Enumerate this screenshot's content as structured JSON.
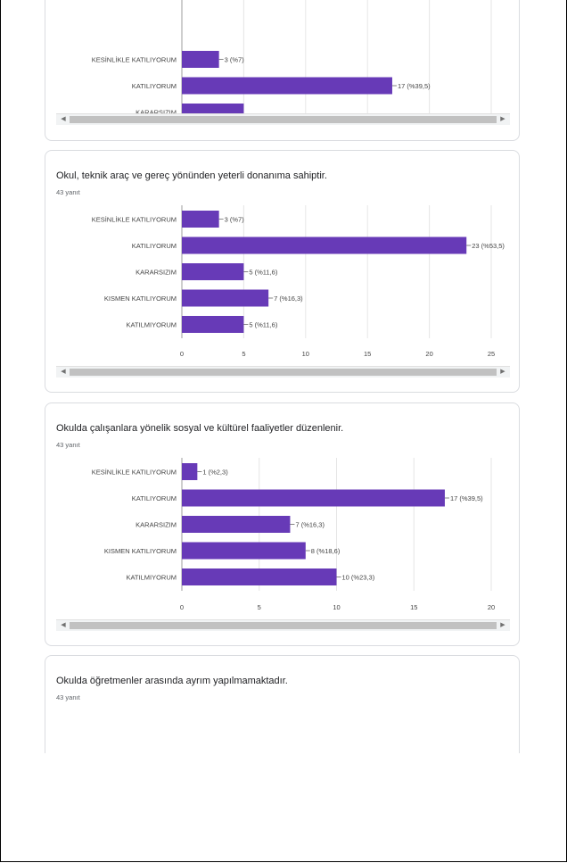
{
  "chart_data": [
    {
      "type": "bar",
      "orientation": "horizontal",
      "title": "",
      "subtitle": "",
      "categories": [
        "KESİNLİKLE KATILIYORUM",
        "KATILIYORUM",
        "KARARSIZIM"
      ],
      "values": [
        3,
        17,
        5
      ],
      "value_labels": [
        "3 (%7)",
        "17 (%39,5)",
        ""
      ],
      "xlim": [
        0,
        25
      ],
      "color": "#673ab7",
      "truncated_top": true
    },
    {
      "type": "bar",
      "orientation": "horizontal",
      "title": "Okul, teknik araç ve gereç yönünden yeterli donanıma sahiptir.",
      "subtitle": "43 yanıt",
      "categories": [
        "KESİNLİKLE KATILIYORUM",
        "KATILIYORUM",
        "KARARSIZIM",
        "KISMEN KATILIYORUM",
        "KATILMIYORUM"
      ],
      "values": [
        3,
        23,
        5,
        7,
        5
      ],
      "value_labels": [
        "3 (%7)",
        "23 (%53,5)",
        "5 (%11,6)",
        "7 (%16,3)",
        "5 (%11,6)"
      ],
      "xticks": [
        0,
        5,
        10,
        15,
        20,
        25
      ],
      "xlim": [
        0,
        25
      ],
      "color": "#673ab7"
    },
    {
      "type": "bar",
      "orientation": "horizontal",
      "title": "Okulda çalışanlara yönelik sosyal ve kültürel faaliyetler düzenlenir.",
      "subtitle": "43 yanıt",
      "categories": [
        "KESİNLİKLE KATILIYORUM",
        "KATILIYORUM",
        "KARARSIZIM",
        "KISMEN KATILIYORUM",
        "KATILMIYORUM"
      ],
      "values": [
        1,
        17,
        7,
        8,
        10
      ],
      "value_labels": [
        "1 (%2,3)",
        "17 (%39,5)",
        "7 (%16,3)",
        "8 (%18,6)",
        "10 (%23,3)"
      ],
      "xticks": [
        0,
        5,
        10,
        15,
        20
      ],
      "xlim": [
        0,
        20
      ],
      "color": "#673ab7"
    },
    {
      "type": "bar",
      "title": "Okulda öğretmenler arasında ayrım yapılmamaktadır.",
      "subtitle": "43 yanıt",
      "categories": [],
      "values": []
    }
  ]
}
